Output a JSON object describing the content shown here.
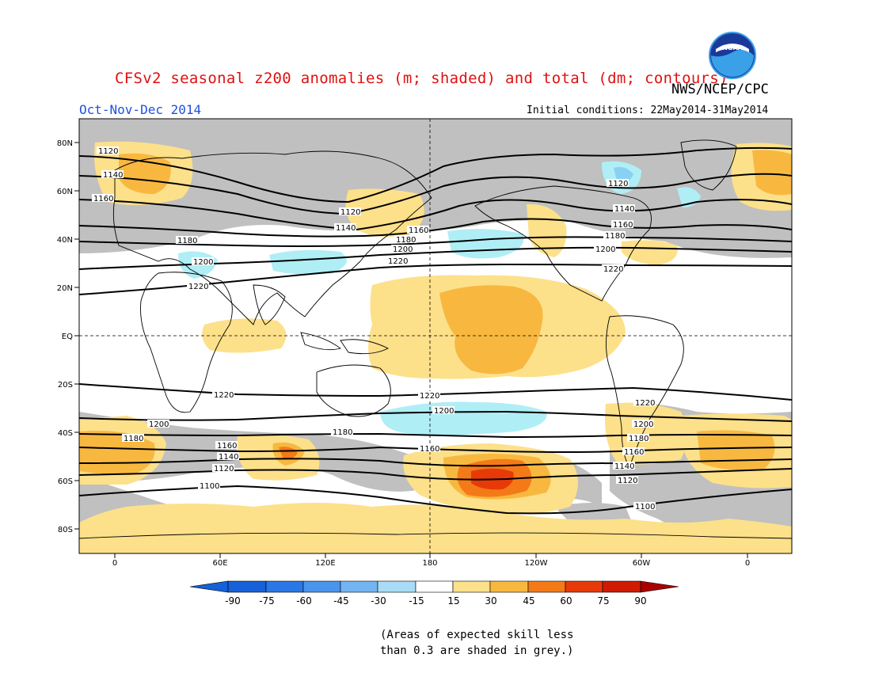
{
  "header": {
    "title": "CFSv2 seasonal z200 anomalies (m; shaded) and total (dm; contours)",
    "agency": "NWS/NCEP/CPC",
    "season": "Oct-Nov-Dec 2014",
    "initial_conditions": "Initial conditions: 22May2014-31May2014",
    "logo_text": "NOAA"
  },
  "map": {
    "lat_labels": [
      "80N",
      "60N",
      "40N",
      "20N",
      "EQ",
      "20S",
      "40S",
      "60S",
      "80S"
    ],
    "lon_labels": [
      "0",
      "60E",
      "120E",
      "180",
      "120W",
      "60W",
      "0"
    ],
    "contour_labels": [
      "1100",
      "1120",
      "1140",
      "1160",
      "1180",
      "1200",
      "1220"
    ],
    "colors": {
      "grey_low_skill": "#c0c0c0",
      "pos15": "#fde08a",
      "pos30": "#f8b840",
      "pos45": "#f47a18",
      "pos60": "#e83a08",
      "neg15": "#b0eef6",
      "neg30": "#88d0f4"
    }
  },
  "colorbar": {
    "labels": [
      "-90",
      "-75",
      "-60",
      "-45",
      "-30",
      "-15",
      "15",
      "30",
      "45",
      "60",
      "75",
      "90"
    ],
    "colors": [
      "#1660d8",
      "#2a78e6",
      "#4a94ee",
      "#74b4f2",
      "#a8dcf6",
      "#d4f4fa",
      "#ffffff",
      "#fde08a",
      "#f8b840",
      "#f47a18",
      "#e83a08",
      "#c00000"
    ]
  },
  "footnote": {
    "line1": "(Areas of expected skill less",
    "line2": "than 0.3 are shaded in grey.)"
  }
}
